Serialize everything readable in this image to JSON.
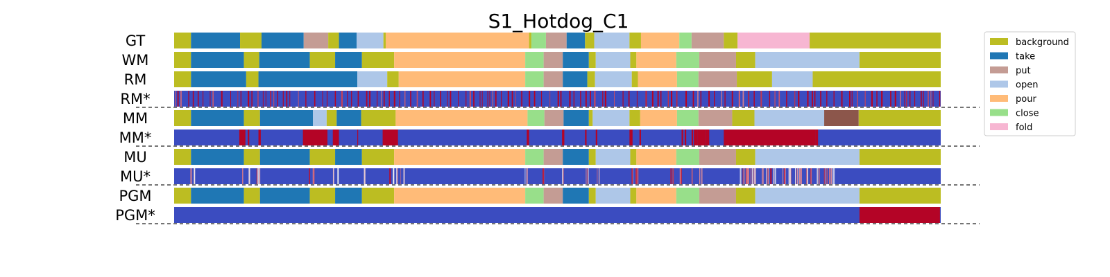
{
  "chart_data": {
    "type": "segmentation-timeline",
    "title": "S1_Hotdog_C1",
    "x_range": [
      0,
      100
    ],
    "legend": {
      "placement": "top-right",
      "entries": [
        {
          "name": "background",
          "color": "#bcbd22"
        },
        {
          "name": "take",
          "color": "#1f77b4"
        },
        {
          "name": "put",
          "color": "#c49c94"
        },
        {
          "name": "open",
          "color": "#aec7e8"
        },
        {
          "name": "pour",
          "color": "#ffbb78"
        },
        {
          "name": "close",
          "color": "#98df8a"
        },
        {
          "name": "fold",
          "color": "#f7b6d2"
        }
      ]
    },
    "extra_colors": {
      "unlisted_class": "#8c564b",
      "confidence_low": "#3b4cc0",
      "confidence_high": "#b40426"
    },
    "rows": [
      {
        "label": "GT",
        "kind": "segments",
        "segments": [
          {
            "start": 0,
            "end": 2.2,
            "class": "background"
          },
          {
            "start": 2.2,
            "end": 8.6,
            "class": "take"
          },
          {
            "start": 8.6,
            "end": 11.4,
            "class": "background"
          },
          {
            "start": 11.4,
            "end": 16.9,
            "class": "take"
          },
          {
            "start": 16.9,
            "end": 20.1,
            "class": "put"
          },
          {
            "start": 20.1,
            "end": 21.5,
            "class": "background"
          },
          {
            "start": 21.5,
            "end": 23.8,
            "class": "take"
          },
          {
            "start": 23.8,
            "end": 27.3,
            "class": "open"
          },
          {
            "start": 27.3,
            "end": 27.6,
            "class": "background"
          },
          {
            "start": 27.6,
            "end": 46.3,
            "class": "pour"
          },
          {
            "start": 46.3,
            "end": 46.6,
            "class": "background"
          },
          {
            "start": 46.6,
            "end": 48.5,
            "class": "close"
          },
          {
            "start": 48.5,
            "end": 51.2,
            "class": "put"
          },
          {
            "start": 51.2,
            "end": 53.6,
            "class": "take"
          },
          {
            "start": 53.6,
            "end": 54.8,
            "class": "background"
          },
          {
            "start": 54.8,
            "end": 59.4,
            "class": "open"
          },
          {
            "start": 59.4,
            "end": 60.9,
            "class": "background"
          },
          {
            "start": 60.9,
            "end": 65.9,
            "class": "pour"
          },
          {
            "start": 65.9,
            "end": 67.5,
            "class": "close"
          },
          {
            "start": 67.5,
            "end": 71.7,
            "class": "put"
          },
          {
            "start": 71.7,
            "end": 73.5,
            "class": "background"
          },
          {
            "start": 73.5,
            "end": 82.9,
            "class": "fold"
          },
          {
            "start": 82.9,
            "end": 100,
            "class": "background"
          }
        ]
      },
      {
        "label": "WM",
        "kind": "segments",
        "segments": [
          {
            "start": 0,
            "end": 2.2,
            "class": "background"
          },
          {
            "start": 2.2,
            "end": 9.1,
            "class": "take"
          },
          {
            "start": 9.1,
            "end": 11.1,
            "class": "background"
          },
          {
            "start": 11.1,
            "end": 17.7,
            "class": "take"
          },
          {
            "start": 17.7,
            "end": 21.0,
            "class": "background"
          },
          {
            "start": 21.0,
            "end": 24.5,
            "class": "take"
          },
          {
            "start": 24.5,
            "end": 28.7,
            "class": "background"
          },
          {
            "start": 28.7,
            "end": 45.8,
            "class": "pour"
          },
          {
            "start": 45.8,
            "end": 48.2,
            "class": "close"
          },
          {
            "start": 48.2,
            "end": 50.7,
            "class": "put"
          },
          {
            "start": 50.7,
            "end": 54.1,
            "class": "take"
          },
          {
            "start": 54.1,
            "end": 55.0,
            "class": "background"
          },
          {
            "start": 55.0,
            "end": 59.5,
            "class": "open"
          },
          {
            "start": 59.5,
            "end": 60.3,
            "class": "background"
          },
          {
            "start": 60.3,
            "end": 65.5,
            "class": "pour"
          },
          {
            "start": 65.5,
            "end": 68.5,
            "class": "close"
          },
          {
            "start": 68.5,
            "end": 73.3,
            "class": "put"
          },
          {
            "start": 73.3,
            "end": 75.8,
            "class": "background"
          },
          {
            "start": 75.8,
            "end": 89.4,
            "class": "open"
          },
          {
            "start": 89.4,
            "end": 100,
            "class": "background"
          }
        ]
      },
      {
        "label": "RM",
        "kind": "segments",
        "segments": [
          {
            "start": 0,
            "end": 2.2,
            "class": "background"
          },
          {
            "start": 2.2,
            "end": 9.4,
            "class": "take"
          },
          {
            "start": 9.4,
            "end": 11.0,
            "class": "background"
          },
          {
            "start": 11.0,
            "end": 23.9,
            "class": "take"
          },
          {
            "start": 23.9,
            "end": 27.8,
            "class": "open"
          },
          {
            "start": 27.8,
            "end": 29.3,
            "class": "background"
          },
          {
            "start": 29.3,
            "end": 45.8,
            "class": "pour"
          },
          {
            "start": 45.8,
            "end": 48.2,
            "class": "close"
          },
          {
            "start": 48.2,
            "end": 50.7,
            "class": "put"
          },
          {
            "start": 50.7,
            "end": 53.9,
            "class": "take"
          },
          {
            "start": 53.9,
            "end": 54.9,
            "class": "background"
          },
          {
            "start": 54.9,
            "end": 59.7,
            "class": "open"
          },
          {
            "start": 59.7,
            "end": 60.5,
            "class": "background"
          },
          {
            "start": 60.5,
            "end": 65.6,
            "class": "pour"
          },
          {
            "start": 65.6,
            "end": 68.4,
            "class": "close"
          },
          {
            "start": 68.4,
            "end": 73.4,
            "class": "put"
          },
          {
            "start": 73.4,
            "end": 78.0,
            "class": "background"
          },
          {
            "start": 78.0,
            "end": 83.3,
            "class": "open"
          },
          {
            "start": 83.3,
            "end": 100,
            "class": "background"
          }
        ]
      },
      {
        "label": "RM*",
        "kind": "confidence",
        "pattern": "dense",
        "seed": 11
      },
      {
        "label": "MM",
        "kind": "segments",
        "segments": [
          {
            "start": 0,
            "end": 2.2,
            "class": "background"
          },
          {
            "start": 2.2,
            "end": 9.1,
            "class": "take"
          },
          {
            "start": 9.1,
            "end": 11.2,
            "class": "background"
          },
          {
            "start": 11.2,
            "end": 18.1,
            "class": "take"
          },
          {
            "start": 18.1,
            "end": 19.9,
            "class": "open"
          },
          {
            "start": 19.9,
            "end": 21.2,
            "class": "background"
          },
          {
            "start": 21.2,
            "end": 24.4,
            "class": "take"
          },
          {
            "start": 24.4,
            "end": 28.9,
            "class": "background"
          },
          {
            "start": 28.9,
            "end": 46.1,
            "class": "pour"
          },
          {
            "start": 46.1,
            "end": 48.3,
            "class": "close"
          },
          {
            "start": 48.3,
            "end": 50.8,
            "class": "put"
          },
          {
            "start": 50.8,
            "end": 54.1,
            "class": "take"
          },
          {
            "start": 54.1,
            "end": 54.6,
            "class": "background"
          },
          {
            "start": 54.6,
            "end": 59.4,
            "class": "open"
          },
          {
            "start": 59.4,
            "end": 60.8,
            "class": "background"
          },
          {
            "start": 60.8,
            "end": 65.6,
            "class": "pour"
          },
          {
            "start": 65.6,
            "end": 68.4,
            "class": "close"
          },
          {
            "start": 68.4,
            "end": 72.8,
            "class": "put"
          },
          {
            "start": 72.8,
            "end": 75.7,
            "class": "background"
          },
          {
            "start": 75.7,
            "end": 84.8,
            "class": "open"
          },
          {
            "start": 84.8,
            "end": 89.3,
            "class": "unlisted_class"
          },
          {
            "start": 89.3,
            "end": 100,
            "class": "background"
          }
        ]
      },
      {
        "label": "MM*",
        "kind": "confidence",
        "pattern": "blocks",
        "blocks": [
          [
            8.5,
            9.3
          ],
          [
            9.6,
            9.8
          ],
          [
            11.0,
            11.3
          ],
          [
            16.8,
            20.0
          ],
          [
            20.7,
            21.5
          ],
          [
            23.9,
            24.0
          ],
          [
            27.2,
            29.2
          ],
          [
            46.0,
            46.3
          ],
          [
            50.6,
            50.9
          ],
          [
            53.6,
            53.8
          ],
          [
            55.0,
            55.2
          ],
          [
            59.4,
            59.8
          ],
          [
            60.7,
            60.9
          ],
          [
            66.2,
            66.4
          ],
          [
            66.6,
            66.8
          ],
          [
            67.5,
            67.7
          ],
          [
            67.8,
            68.3
          ],
          [
            68.3,
            69.3
          ],
          [
            69.3,
            69.8
          ],
          [
            71.7,
            83.7
          ],
          [
            83.7,
            84.0
          ]
        ]
      },
      {
        "label": "MU",
        "kind": "segments",
        "segments": [
          {
            "start": 0,
            "end": 2.2,
            "class": "background"
          },
          {
            "start": 2.2,
            "end": 9.1,
            "class": "take"
          },
          {
            "start": 9.1,
            "end": 11.2,
            "class": "background"
          },
          {
            "start": 11.2,
            "end": 17.7,
            "class": "take"
          },
          {
            "start": 17.7,
            "end": 21.0,
            "class": "background"
          },
          {
            "start": 21.0,
            "end": 24.5,
            "class": "take"
          },
          {
            "start": 24.5,
            "end": 28.7,
            "class": "background"
          },
          {
            "start": 28.7,
            "end": 45.8,
            "class": "pour"
          },
          {
            "start": 45.8,
            "end": 48.2,
            "class": "close"
          },
          {
            "start": 48.2,
            "end": 50.7,
            "class": "put"
          },
          {
            "start": 50.7,
            "end": 54.1,
            "class": "take"
          },
          {
            "start": 54.1,
            "end": 55.0,
            "class": "background"
          },
          {
            "start": 55.0,
            "end": 59.5,
            "class": "open"
          },
          {
            "start": 59.5,
            "end": 60.3,
            "class": "background"
          },
          {
            "start": 60.3,
            "end": 65.5,
            "class": "pour"
          },
          {
            "start": 65.5,
            "end": 68.5,
            "class": "close"
          },
          {
            "start": 68.5,
            "end": 73.3,
            "class": "put"
          },
          {
            "start": 73.3,
            "end": 75.8,
            "class": "background"
          },
          {
            "start": 75.8,
            "end": 89.4,
            "class": "open"
          },
          {
            "start": 89.4,
            "end": 100,
            "class": "background"
          }
        ]
      },
      {
        "label": "MU*",
        "kind": "confidence",
        "pattern": "bursts",
        "seed": 29,
        "bursts": [
          [
            1.9,
            2.8
          ],
          [
            8.8,
            11.2
          ],
          [
            17.5,
            18.2
          ],
          [
            20.7,
            21.4
          ],
          [
            24.2,
            24.8
          ],
          [
            27.8,
            30.0
          ],
          [
            45.6,
            46.1
          ],
          [
            47.8,
            48.3
          ],
          [
            50.4,
            51.0
          ],
          [
            53.7,
            54.4
          ],
          [
            55.1,
            55.6
          ],
          [
            59.3,
            60.6
          ],
          [
            64.7,
            65.2
          ],
          [
            65.9,
            66.2
          ],
          [
            67.2,
            67.7
          ],
          [
            68.5,
            68.9
          ],
          [
            73.1,
            77.1
          ],
          [
            77.1,
            86.3
          ]
        ]
      },
      {
        "label": "PGM",
        "kind": "segments",
        "segments": [
          {
            "start": 0,
            "end": 2.2,
            "class": "background"
          },
          {
            "start": 2.2,
            "end": 9.1,
            "class": "take"
          },
          {
            "start": 9.1,
            "end": 11.2,
            "class": "background"
          },
          {
            "start": 11.2,
            "end": 17.7,
            "class": "take"
          },
          {
            "start": 17.7,
            "end": 21.0,
            "class": "background"
          },
          {
            "start": 21.0,
            "end": 24.5,
            "class": "take"
          },
          {
            "start": 24.5,
            "end": 28.7,
            "class": "background"
          },
          {
            "start": 28.7,
            "end": 45.8,
            "class": "pour"
          },
          {
            "start": 45.8,
            "end": 48.2,
            "class": "close"
          },
          {
            "start": 48.2,
            "end": 50.7,
            "class": "put"
          },
          {
            "start": 50.7,
            "end": 54.1,
            "class": "take"
          },
          {
            "start": 54.1,
            "end": 55.0,
            "class": "background"
          },
          {
            "start": 55.0,
            "end": 59.5,
            "class": "open"
          },
          {
            "start": 59.5,
            "end": 60.3,
            "class": "background"
          },
          {
            "start": 60.3,
            "end": 65.5,
            "class": "pour"
          },
          {
            "start": 65.5,
            "end": 68.5,
            "class": "close"
          },
          {
            "start": 68.5,
            "end": 73.3,
            "class": "put"
          },
          {
            "start": 73.3,
            "end": 75.8,
            "class": "background"
          },
          {
            "start": 75.8,
            "end": 89.4,
            "class": "open"
          },
          {
            "start": 89.4,
            "end": 100,
            "class": "background"
          }
        ]
      },
      {
        "label": "PGM*",
        "kind": "confidence",
        "pattern": "blocks",
        "blocks": [
          [
            89.4,
            99.9
          ]
        ]
      }
    ]
  }
}
